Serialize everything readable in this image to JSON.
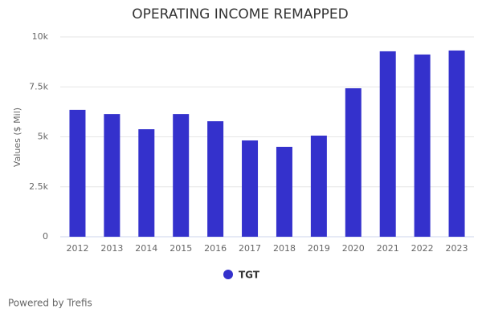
{
  "chart_data": {
    "type": "bar",
    "title": "OPERATING INCOME REMAPPED",
    "y_label": "Values ($ Mil)",
    "categories": [
      "2012",
      "2013",
      "2014",
      "2015",
      "2016",
      "2017",
      "2018",
      "2019",
      "2020",
      "2021",
      "2022",
      "2023"
    ],
    "series": [
      {
        "name": "TGT",
        "color": "#3431cc",
        "values": [
          6350,
          6140,
          5380,
          6140,
          5780,
          4820,
          4500,
          5060,
          7430,
          9280,
          9120,
          9320
        ]
      }
    ],
    "ylim": [
      0,
      10000
    ],
    "yticks": [
      0,
      {
        "value": 2500,
        "label": "2.5k"
      },
      {
        "value": 5000,
        "label": "5k"
      },
      {
        "value": 7500,
        "label": "7.5k"
      },
      {
        "value": 10000,
        "label": "10k"
      }
    ],
    "grid": true
  },
  "footer": "Powered by Trefis"
}
